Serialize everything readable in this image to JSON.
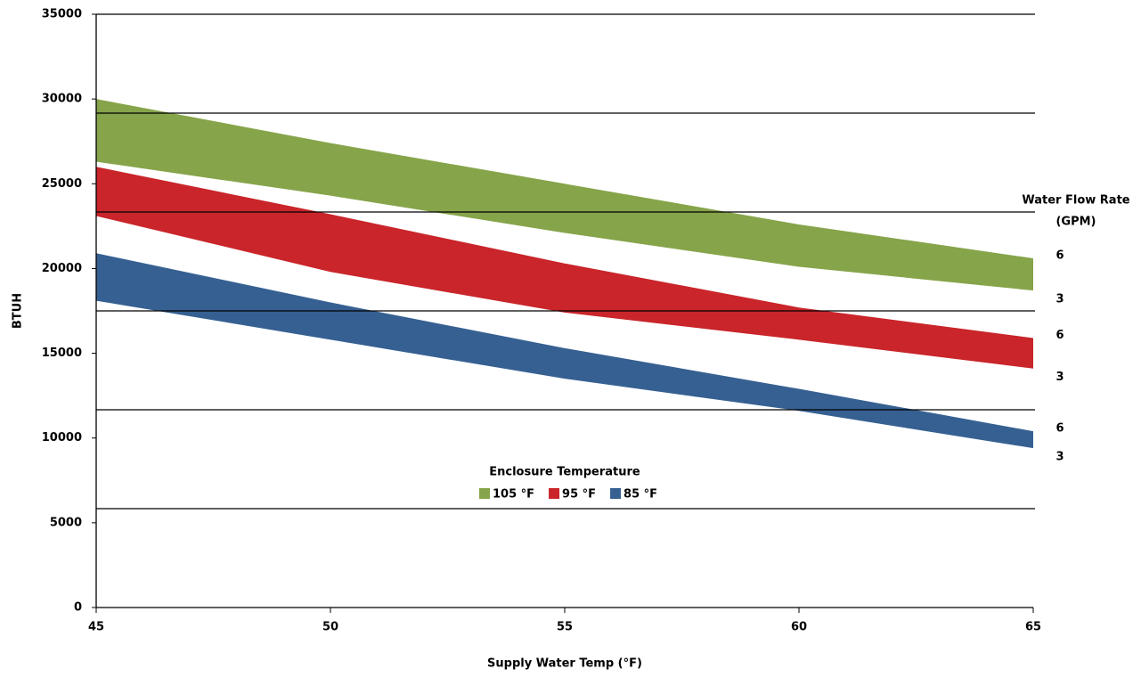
{
  "chart_data": {
    "type": "band",
    "x_label": "Supply Water Temp (°F)",
    "y_label": "BTUH",
    "x": [
      45,
      50,
      55,
      60,
      65
    ],
    "xlim": [
      45,
      65
    ],
    "xticks": [
      45,
      50,
      55,
      60,
      65
    ],
    "ylim": [
      0,
      35000
    ],
    "yticks": [
      0,
      5000,
      10000,
      15000,
      20000,
      25000,
      30000,
      35000
    ],
    "grid_lines": [
      5833,
      11667,
      17500,
      23333,
      29167,
      35000
    ],
    "legend_title": "Enclosure Temperature",
    "flow_title": [
      "Water Flow Rate",
      "(GPM)"
    ],
    "series": [
      {
        "name": "105 °F",
        "color": "#86a44a",
        "upper_label": "6",
        "lower_label": "3",
        "upper": [
          30000,
          27400,
          25000,
          22600,
          20600
        ],
        "lower": [
          26300,
          24300,
          22100,
          20100,
          18700
        ]
      },
      {
        "name": "95 °F",
        "color": "#c9252a",
        "upper_label": "6",
        "lower_label": "3",
        "upper": [
          26000,
          23200,
          20300,
          17700,
          15900
        ],
        "lower": [
          23100,
          19800,
          17400,
          15800,
          14100
        ]
      },
      {
        "name": "85 °F",
        "color": "#366092",
        "upper_label": "6",
        "lower_label": "3",
        "upper": [
          20900,
          18000,
          15300,
          12900,
          10400
        ],
        "lower": [
          18100,
          15800,
          13500,
          11600,
          9400
        ]
      }
    ]
  }
}
